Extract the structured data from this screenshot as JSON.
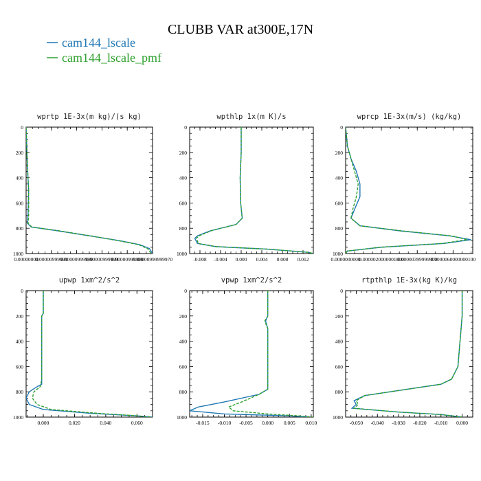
{
  "title": "CLUBB VAR at300E,17N",
  "legend": [
    {
      "label": "cam144_lscale",
      "color": "#1f77b4",
      "dash": "solid"
    },
    {
      "label": "cam144_lscale_pmf",
      "color": "#2ca02c",
      "dash": "dashed"
    }
  ],
  "chart_data": [
    {
      "type": "line",
      "title": "wprtp  1E-3x(m kg)/(s kg)",
      "xlim": [
        0,
        2e-05
      ],
      "ylim": [
        1000,
        0
      ],
      "xtick_labels": [
        "0.00000000",
        "0.00000999999",
        "0.00000999999",
        "0.00000999999",
        "0.00000999999",
        "0.00000999999970"
      ],
      "ytick_labels": [
        "0",
        "200",
        "400",
        "600",
        "800",
        "1000"
      ],
      "series": [
        {
          "name": "cam144_lscale",
          "color": "#1f77b4",
          "dash": "solid",
          "points": [
            [
              0,
              0
            ],
            [
              2e-07,
              300
            ],
            [
              4e-07,
              500
            ],
            [
              3e-07,
              700
            ],
            [
              2e-07,
              760
            ],
            [
              8e-07,
              790
            ],
            [
              5e-06,
              820
            ],
            [
              1e-05,
              860
            ],
            [
              1.5e-05,
              900
            ],
            [
              1.8e-05,
              930
            ],
            [
              1.95e-05,
              960
            ],
            [
              2e-05,
              1000
            ]
          ]
        },
        {
          "name": "cam144_lscale_pmf",
          "color": "#2ca02c",
          "dash": "dashed",
          "points": [
            [
              0,
              0
            ],
            [
              2e-07,
              300
            ],
            [
              4e-07,
              500
            ],
            [
              4e-07,
              700
            ],
            [
              3e-07,
              760
            ],
            [
              9e-07,
              790
            ],
            [
              5.2e-06,
              820
            ],
            [
              1.02e-05,
              860
            ],
            [
              1.48e-05,
              900
            ],
            [
              1.78e-05,
              930
            ],
            [
              1.92e-05,
              960
            ],
            [
              1.98e-05,
              1000
            ]
          ]
        }
      ]
    },
    {
      "type": "line",
      "title": "wpthlp  1x(m K)/s",
      "xlim": [
        -0.01,
        0.014
      ],
      "ylim": [
        1000,
        0
      ],
      "xtick_labels": [
        "-0.008",
        "-0.004",
        "0.000",
        "0.004",
        "0.008",
        "0.012"
      ],
      "xtick_values": [
        -0.008,
        -0.004,
        0.0,
        0.004,
        0.008,
        0.012
      ],
      "ytick_labels": [
        "0",
        "200",
        "400",
        "600",
        "800",
        "1000"
      ],
      "series": [
        {
          "name": "cam144_lscale",
          "color": "#1f77b4",
          "dash": "solid",
          "points": [
            [
              0.0,
              0
            ],
            [
              0.0,
              200
            ],
            [
              -0.0002,
              400
            ],
            [
              -0.0001,
              600
            ],
            [
              0.0002,
              720
            ],
            [
              -0.001,
              770
            ],
            [
              -0.006,
              820
            ],
            [
              -0.0085,
              860
            ],
            [
              -0.009,
              880
            ],
            [
              -0.0085,
              920
            ],
            [
              -0.005,
              945
            ],
            [
              0.005,
              965
            ],
            [
              0.013,
              990
            ],
            [
              0.014,
              1000
            ]
          ]
        },
        {
          "name": "cam144_lscale_pmf",
          "color": "#2ca02c",
          "dash": "dashed",
          "points": [
            [
              0.0,
              0
            ],
            [
              0.0,
              200
            ],
            [
              -0.0002,
              400
            ],
            [
              -0.0001,
              600
            ],
            [
              0.0002,
              720
            ],
            [
              -0.001,
              770
            ],
            [
              -0.0058,
              820
            ],
            [
              -0.0082,
              860
            ],
            [
              -0.0087,
              880
            ],
            [
              -0.0083,
              920
            ],
            [
              -0.0048,
              945
            ],
            [
              0.0052,
              965
            ],
            [
              0.013,
              990
            ],
            [
              0.014,
              1000
            ]
          ]
        }
      ]
    },
    {
      "type": "line",
      "title": "wprcp  1E-3x(m/s) (kg/kg)",
      "xlim": [
        0,
        7.1e-06
      ],
      "ylim": [
        1000,
        0
      ],
      "xtick_labels": [
        "0.0000000000",
        "0.0000020000001000",
        "0.00000399999970",
        "0.0000060000000100"
      ],
      "xtick_values": [
        0,
        2e-06,
        4e-06,
        6e-06
      ],
      "ytick_labels": [
        "0",
        "200",
        "400",
        "600",
        "800",
        "1000"
      ],
      "series": [
        {
          "name": "cam144_lscale",
          "color": "#1f77b4",
          "dash": "solid",
          "points": [
            [
              0,
              0
            ],
            [
              1e-07,
              150
            ],
            [
              3e-07,
              250
            ],
            [
              6e-07,
              350
            ],
            [
              8e-07,
              450
            ],
            [
              8e-07,
              550
            ],
            [
              5e-07,
              650
            ],
            [
              3e-07,
              720
            ],
            [
              8e-07,
              780
            ],
            [
              3e-06,
              820
            ],
            [
              5.8e-06,
              860
            ],
            [
              7e-06,
              890
            ],
            [
              5.5e-06,
              920
            ],
            [
              2e-06,
              950
            ],
            [
              1e-07,
              980
            ],
            [
              0,
              1000
            ]
          ]
        },
        {
          "name": "cam144_lscale_pmf",
          "color": "#2ca02c",
          "dash": "dashed",
          "points": [
            [
              0,
              0
            ],
            [
              1e-07,
              150
            ],
            [
              3e-07,
              250
            ],
            [
              5e-07,
              350
            ],
            [
              7e-07,
              450
            ],
            [
              6e-07,
              550
            ],
            [
              4e-07,
              650
            ],
            [
              3e-07,
              720
            ],
            [
              8e-07,
              780
            ],
            [
              3.1e-06,
              820
            ],
            [
              5.9e-06,
              860
            ],
            [
              6.8e-06,
              890
            ],
            [
              5.4e-06,
              920
            ],
            [
              1.9e-06,
              950
            ],
            [
              1e-07,
              980
            ],
            [
              0,
              1000
            ]
          ]
        }
      ]
    },
    {
      "type": "line",
      "title": "upwp  1xm^2/s^2",
      "xlim": [
        -0.011,
        0.07
      ],
      "ylim": [
        1000,
        0
      ],
      "xtick_labels": [
        "0.000",
        "0.020",
        "0.040",
        "0.060"
      ],
      "xtick_values": [
        0.0,
        0.02,
        0.04,
        0.06
      ],
      "ytick_labels": [
        "0",
        "200",
        "400",
        "600",
        "800",
        "1000"
      ],
      "series": [
        {
          "name": "cam144_lscale",
          "color": "#1f77b4",
          "dash": "solid",
          "points": [
            [
              0.0,
              0
            ],
            [
              0.0,
              180
            ],
            [
              -0.001,
              200
            ],
            [
              -0.001,
              400
            ],
            [
              -0.001,
              600
            ],
            [
              -0.001,
              740
            ],
            [
              -0.004,
              760
            ],
            [
              -0.009,
              800
            ],
            [
              -0.011,
              850
            ],
            [
              -0.009,
              900
            ],
            [
              0.0,
              940
            ],
            [
              0.03,
              970
            ],
            [
              0.06,
              990
            ],
            [
              0.07,
              1000
            ]
          ]
        },
        {
          "name": "cam144_lscale_pmf",
          "color": "#2ca02c",
          "dash": "dashed",
          "points": [
            [
              0.0,
              0
            ],
            [
              0.0,
              180
            ],
            [
              -0.001,
              200
            ],
            [
              -0.001,
              300
            ],
            [
              -0.001,
              500
            ],
            [
              -0.001,
              700
            ],
            [
              -0.002,
              760
            ],
            [
              -0.006,
              800
            ],
            [
              -0.007,
              850
            ],
            [
              -0.004,
              900
            ],
            [
              0.005,
              940
            ],
            [
              0.035,
              970
            ],
            [
              0.06,
              990
            ],
            [
              0.07,
              1000
            ]
          ]
        }
      ]
    },
    {
      "type": "line",
      "title": "vpwp  1xm^2/s^2",
      "xlim": [
        -0.018,
        0.0105
      ],
      "ylim": [
        1000,
        0
      ],
      "xtick_labels": [
        "-0.015",
        "-0.010",
        "-0.005",
        "0.000",
        "0.005",
        "0.010"
      ],
      "xtick_values": [
        -0.015,
        -0.01,
        -0.005,
        0.0,
        0.005,
        0.01
      ],
      "ytick_labels": [
        "0",
        "200",
        "400",
        "600",
        "800",
        "1000"
      ],
      "series": [
        {
          "name": "cam144_lscale",
          "color": "#1f77b4",
          "dash": "solid",
          "points": [
            [
              0.0,
              0
            ],
            [
              0.0,
              200
            ],
            [
              -0.0005,
              240
            ],
            [
              0.0,
              300
            ],
            [
              0.0,
              500
            ],
            [
              0.0,
              700
            ],
            [
              0.0,
              780
            ],
            [
              -0.002,
              820
            ],
            [
              -0.01,
              880
            ],
            [
              -0.016,
              920
            ],
            [
              -0.018,
              950
            ],
            [
              -0.01,
              975
            ],
            [
              0.005,
              990
            ],
            [
              0.0095,
              1000
            ]
          ]
        },
        {
          "name": "cam144_lscale_pmf",
          "color": "#2ca02c",
          "dash": "dashed",
          "points": [
            [
              0.0,
              0
            ],
            [
              0.0,
              200
            ],
            [
              -0.0007,
              240
            ],
            [
              0.0,
              300
            ],
            [
              0.0,
              500
            ],
            [
              0.0,
              700
            ],
            [
              0.0,
              780
            ],
            [
              -0.002,
              820
            ],
            [
              -0.006,
              880
            ],
            [
              -0.009,
              920
            ],
            [
              -0.008,
              950
            ],
            [
              0.0,
              975
            ],
            [
              0.007,
              990
            ],
            [
              0.0105,
              1000
            ]
          ]
        }
      ]
    },
    {
      "type": "line",
      "title": "rtpthlp  1E-3x(kg K)/kg",
      "xlim": [
        -0.055,
        0.005
      ],
      "ylim": [
        1000,
        0
      ],
      "xtick_labels": [
        "-0.050",
        "-0.040",
        "-0.030",
        "-0.020",
        "-0.010",
        "0.000"
      ],
      "xtick_values": [
        -0.05,
        -0.04,
        -0.03,
        -0.02,
        -0.01,
        0.0
      ],
      "ytick_labels": [
        "0",
        "200",
        "400",
        "600",
        "800",
        "1000"
      ],
      "series": [
        {
          "name": "cam144_lscale",
          "color": "#1f77b4",
          "dash": "solid",
          "points": [
            [
              0.0,
              0
            ],
            [
              0.0,
              200
            ],
            [
              -0.001,
              400
            ],
            [
              -0.002,
              600
            ],
            [
              -0.005,
              700
            ],
            [
              -0.01,
              740
            ],
            [
              -0.03,
              790
            ],
            [
              -0.046,
              830
            ],
            [
              -0.051,
              870
            ],
            [
              -0.05,
              900
            ],
            [
              -0.052,
              930
            ],
            [
              -0.03,
              960
            ],
            [
              -0.01,
              980
            ],
            [
              0.0,
              1000
            ]
          ]
        },
        {
          "name": "cam144_lscale_pmf",
          "color": "#2ca02c",
          "dash": "dashed",
          "points": [
            [
              0.0,
              0
            ],
            [
              0.0,
              200
            ],
            [
              -0.001,
              400
            ],
            [
              -0.002,
              600
            ],
            [
              -0.005,
              700
            ],
            [
              -0.01,
              740
            ],
            [
              -0.03,
              790
            ],
            [
              -0.046,
              830
            ],
            [
              -0.05,
              870
            ],
            [
              -0.049,
              900
            ],
            [
              -0.051,
              930
            ],
            [
              -0.03,
              960
            ],
            [
              -0.01,
              980
            ],
            [
              0.0,
              1000
            ]
          ]
        }
      ]
    }
  ]
}
